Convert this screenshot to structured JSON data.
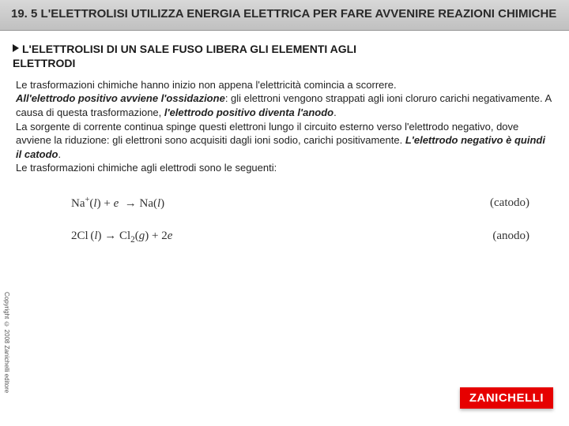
{
  "header": {
    "title_line": "19. 5 L'ELETTROLISI UTILIZZA ENERGIA ELETTRICA PER FARE AVVENIRE REAZIONI CHIMICHE"
  },
  "section": {
    "heading_a": "L'ELETTROLISI DI UN SALE FUSO LIBERA GLI ELEMENTI AGLI",
    "heading_b": "ELETTRODI"
  },
  "para": {
    "t1": "Le trasformazioni chimiche hanno inizio non appena l'elettricità comincia a scorrere.",
    "t2a": "All'elettrodo positivo avviene l'ossidazione",
    "t2b": ": gli elettroni vengono strappati agli ioni cloruro carichi negativamente. A causa di questa trasformazione, ",
    "t2c": "l'elettrodo positivo diventa l'anodo",
    "t2d": ".",
    "t3a": "La sorgente di corrente continua spinge questi elettroni lungo il circuito esterno verso l'elettrodo negativo, dove avviene la riduzione: gli elettroni sono acquisiti dagli ioni sodio, carichi positivamente. ",
    "t3b": "L'elettrodo negativo è quindi il catodo",
    "t3c": ".",
    "t4": "Le trasformazioni chimiche agli elettrodi sono le seguenti:"
  },
  "equations": {
    "eq1_label": "(catodo)",
    "eq2_label": "(anodo)"
  },
  "copyright": "Copyright © 2008 Zanichelli editore",
  "logo": "ZANICHELLI",
  "colors": {
    "header_bg_top": "#d8d8d8",
    "header_bg_bottom": "#c0c0c0",
    "logo_bg": "#e60000",
    "text": "#222222"
  },
  "typography": {
    "header_fontsize": 15,
    "heading_fontsize": 14,
    "body_fontsize": 13,
    "eq_fontsize": 15,
    "copyright_fontsize": 8
  }
}
